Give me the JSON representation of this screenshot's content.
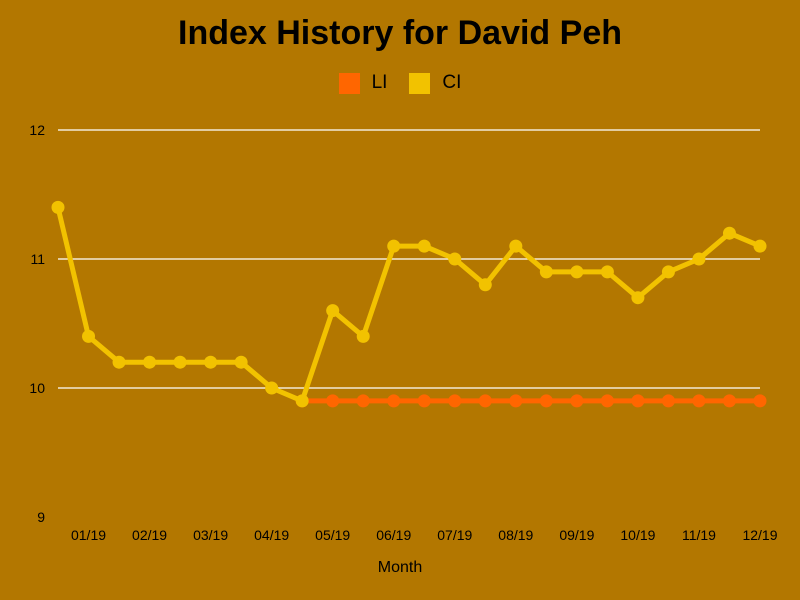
{
  "chart_data": {
    "type": "line",
    "title": "Index History for David Peh",
    "xlabel": "Month",
    "ylabel": "",
    "ylim": [
      9,
      12
    ],
    "yticks": [
      "9",
      "10",
      "11",
      "12"
    ],
    "x_tick_labels": [
      "01/19",
      "02/19",
      "03/19",
      "04/19",
      "05/19",
      "06/19",
      "07/19",
      "08/19",
      "09/19",
      "10/19",
      "11/19",
      "12/19"
    ],
    "grid": true,
    "legend_position": "top-center",
    "series": [
      {
        "name": "LI",
        "color": "#ff6600",
        "x": [
          8,
          9,
          10,
          11,
          12,
          13,
          14,
          15,
          16,
          17,
          18,
          19,
          20,
          21,
          22,
          23
        ],
        "values": [
          9.9,
          9.9,
          9.9,
          9.9,
          9.9,
          9.9,
          9.9,
          9.9,
          9.9,
          9.9,
          9.9,
          9.9,
          9.9,
          9.9,
          9.9,
          9.9
        ]
      },
      {
        "name": "CI",
        "color": "#f2c200",
        "x": [
          0,
          1,
          2,
          3,
          4,
          5,
          6,
          7,
          8,
          9,
          10,
          11,
          12,
          13,
          14,
          15,
          16,
          17,
          18,
          19,
          20,
          21,
          22,
          23
        ],
        "values": [
          11.4,
          10.4,
          10.2,
          10.2,
          10.2,
          10.2,
          10.2,
          10.0,
          9.9,
          10.6,
          10.4,
          11.1,
          11.1,
          11.0,
          10.8,
          11.1,
          10.9,
          10.9,
          10.9,
          10.7,
          10.9,
          11.0,
          11.2,
          11.1
        ]
      }
    ]
  }
}
